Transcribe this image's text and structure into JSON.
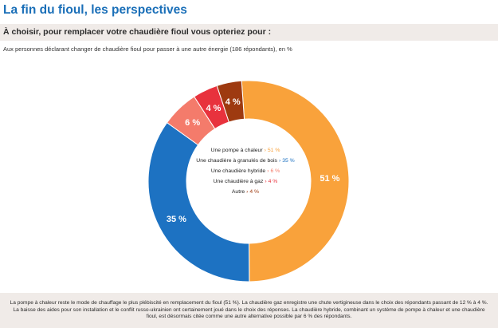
{
  "header": {
    "title": "La fin du fioul, les perspectives",
    "question": "À choisir, pour remplacer votre chaudière fioul vous opteriez pour :",
    "subtitle": "Aux personnes déclarant changer de chaudière fioul pour passer à une autre énergie (186 répondants), en %"
  },
  "chart_data": {
    "type": "pie",
    "variant": "donut",
    "categories": [
      "Une pompe à chaleur",
      "Une chaudière à granulés de bois",
      "Une chaudière hybride",
      "Une chaudière à gaz",
      "Autre"
    ],
    "values": [
      51,
      35,
      6,
      4,
      4
    ],
    "labels": [
      "51 %",
      "35 %",
      "6 %",
      "4 %",
      "4 %"
    ],
    "colors": [
      "#f9a23b",
      "#1d72c2",
      "#f47b6b",
      "#e8323d",
      "#9e3a10"
    ],
    "legend_placement": "center"
  },
  "legend": [
    {
      "name": "Une pompe à chaleur",
      "value": "51 %",
      "color": "#f9a23b"
    },
    {
      "name": "Une chaudière à granulés de bois",
      "value": "35 %",
      "color": "#1d72c2"
    },
    {
      "name": "Une chaudière hybride",
      "value": "6 %",
      "color": "#f47b6b"
    },
    {
      "name": "Une chaudière à gaz",
      "value": "4 %",
      "color": "#e8323d"
    },
    {
      "name": "Autre",
      "value": "4 %",
      "color": "#9e3a10"
    }
  ],
  "legend_arrow": "›",
  "footer": {
    "text": "La pompe à chaleur reste le mode de chauffage le plus plébiscité en remplacement du fioul (51 %). La chaudière gaz enregistre une chute vertigineuse dans le choix des répondants passant de 12 % à 4 %. La baisse des aides pour son installation et le conflit russo-ukrainien ont certainement joué dans le choix des réponses. La chaudière hybride, combinant un système de pompe à chaleur et une chaudière fioul, est désormais citée comme une autre alternative possible par 6 % des répondants."
  }
}
